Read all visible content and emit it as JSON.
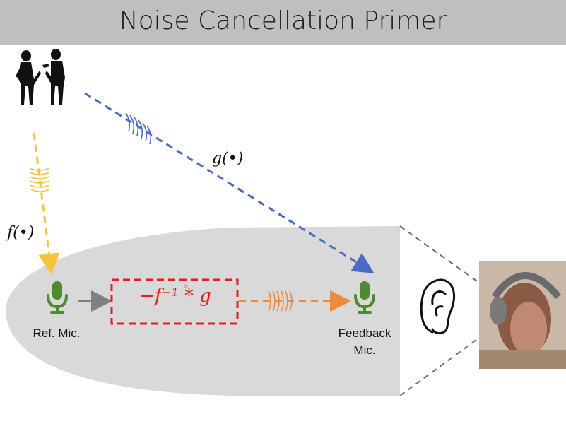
{
  "title": "Noise Cancellation Primer",
  "labels": {
    "g_func": "g(•)",
    "f_func": "f(•)",
    "filter_expr": "−f⁻¹ * g",
    "ref_mic": "Ref. Mic.",
    "feedback_mic_line1": "Feedback",
    "feedback_mic_line2": "Mic."
  },
  "colors": {
    "title_bg": "#bfbfbf",
    "blue_path": "#4a6bc4",
    "yellow_path": "#f5c242",
    "orange_path": "#ef8a3a",
    "mic_green": "#4e8a2f",
    "filter_red": "#e02020",
    "ellipse_gray": "#d9d9d9"
  },
  "icons": {
    "speakers": "two-people-talking-silhouette",
    "mic": "microphone-icon",
    "ear": "ear-icon",
    "photo": "woman-with-headphones-photo"
  }
}
